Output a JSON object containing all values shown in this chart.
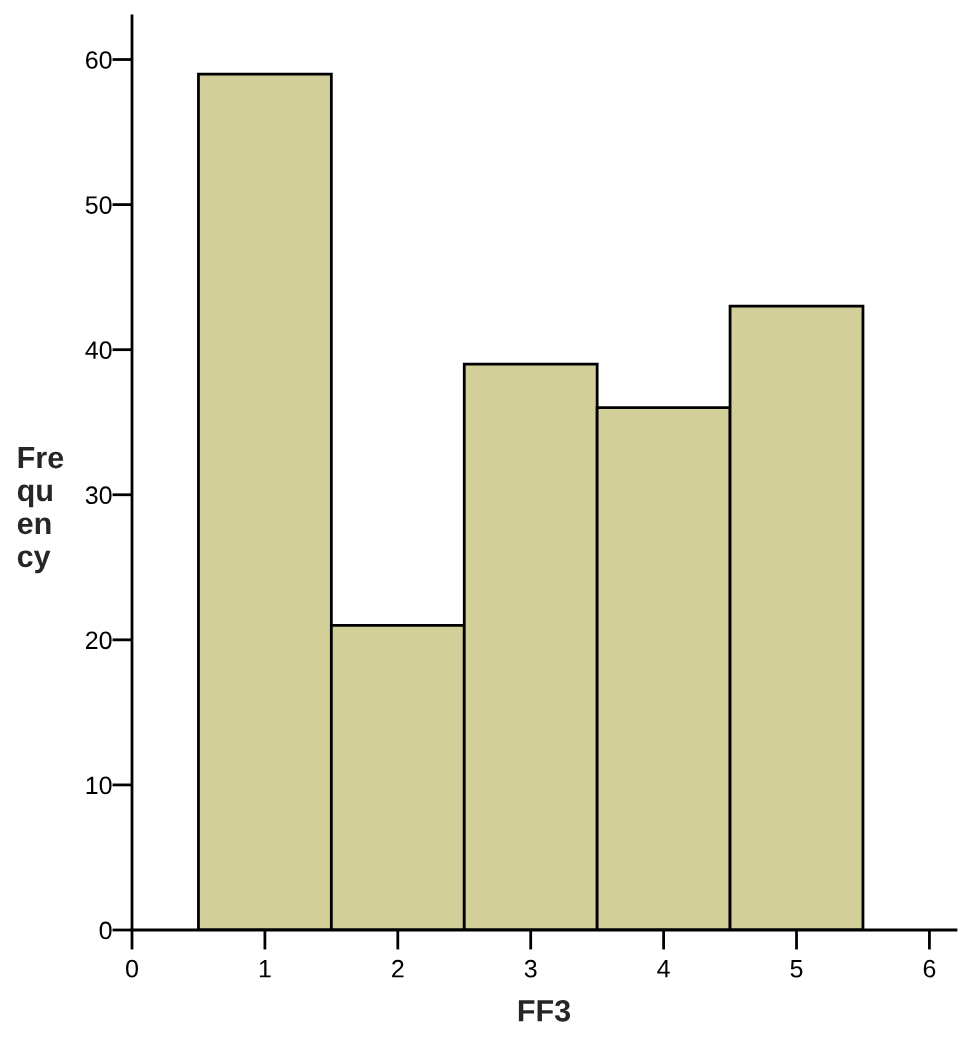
{
  "chart_data": {
    "type": "histogram",
    "xlabel": "FF3",
    "ylabel": "Fre\nqu\nen\ncy",
    "bins": [
      0.5,
      1.5,
      2.5,
      3.5,
      4.5,
      5.5
    ],
    "values": [
      59,
      21,
      39,
      36,
      43
    ],
    "color": "#d3cf98",
    "xlim": [
      0,
      6.2
    ],
    "xticks": [
      0,
      1,
      2,
      3,
      4,
      5,
      6
    ],
    "ylim": [
      0,
      63
    ],
    "yticks": [
      0,
      10,
      20,
      30,
      40,
      50,
      60
    ],
    "grid": false,
    "legend": false
  }
}
